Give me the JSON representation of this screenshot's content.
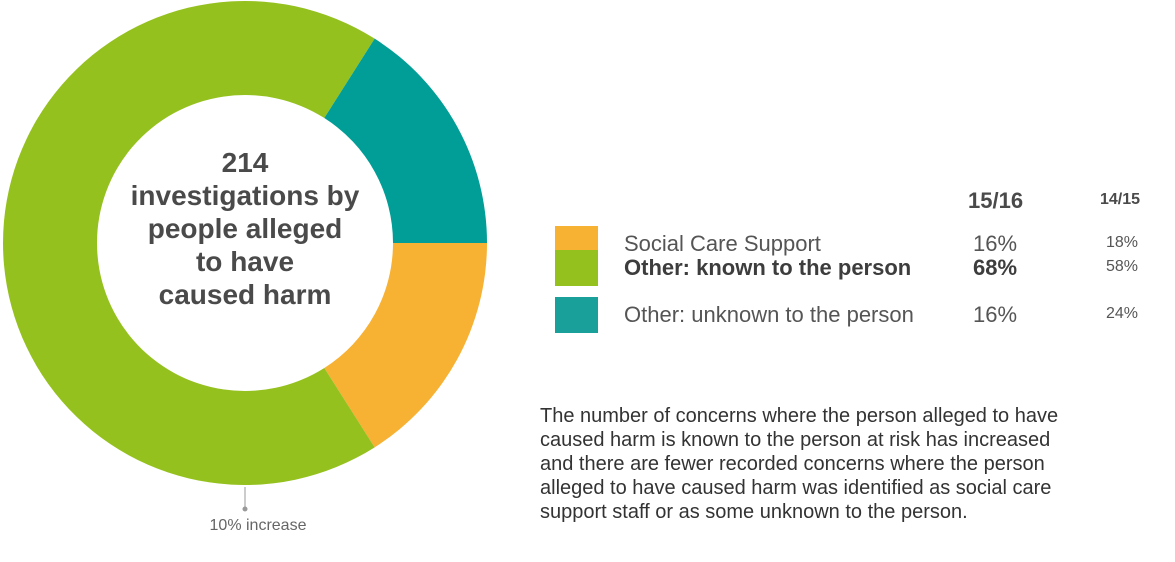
{
  "chart_data": {
    "type": "pie",
    "variant": "donut",
    "categories": [
      "Social Care Support",
      "Other: known to the person",
      "Other: unknown to the person"
    ],
    "series": [
      {
        "name": "15/16",
        "values": [
          16,
          68,
          16
        ]
      },
      {
        "name": "14/15",
        "values": [
          18,
          58,
          24
        ]
      }
    ],
    "value_labels_1516": [
      "16%",
      "68%",
      "16%"
    ],
    "value_labels_1415": [
      "18%",
      "58%",
      "24%"
    ],
    "colors": [
      "#f7b133",
      "#95c11f",
      "#009e96"
    ],
    "center_label_lines": [
      "214",
      "investigations by",
      "people alleged",
      "to have",
      "caused harm"
    ],
    "annotation": "10% increase",
    "legend_headers": [
      "15/16",
      "14/15"
    ],
    "emphasized_category": "Other: known to the person"
  },
  "description_lines": [
    "The number of concerns where the person alleged to have",
    "caused harm is known to the person at risk has increased",
    "and there are fewer recorded concerns where the person",
    "alleged to have caused harm was identified as social care",
    "support staff or as some unknown to the person."
  ]
}
